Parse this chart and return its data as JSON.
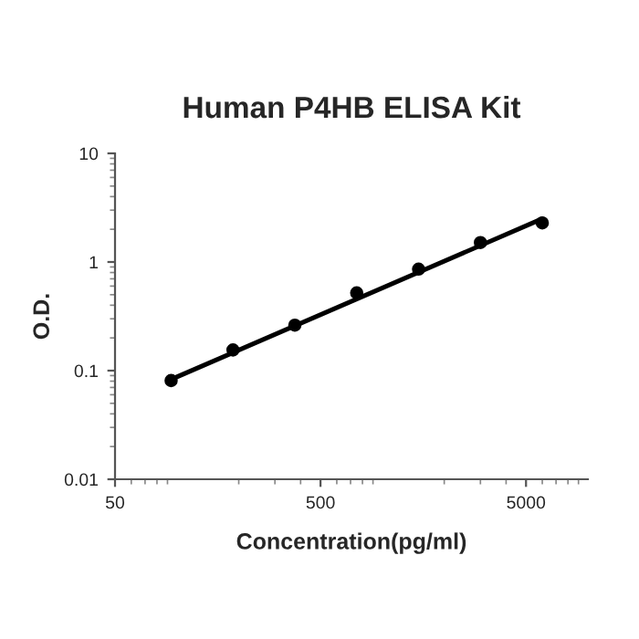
{
  "chart_data": {
    "type": "scatter",
    "title": "Human P4HB ELISA Kit",
    "xlabel": "Concentration(pg/ml)",
    "ylabel": "O.D.",
    "log": "xy",
    "xlim": [
      50,
      10000
    ],
    "xticks": [
      50,
      500,
      5000
    ],
    "ylim": [
      0.01,
      10
    ],
    "yticks": [
      0.01,
      0.1,
      1,
      10
    ],
    "grid": false,
    "legend": false,
    "series": [
      {
        "color": "#000000",
        "marker": "circle",
        "x": [
          93.75,
          187.5,
          375,
          750,
          1500,
          3000,
          6000
        ],
        "values": [
          0.081,
          0.155,
          0.262,
          0.52,
          0.86,
          1.51,
          2.29
        ]
      },
      {
        "type": "line",
        "color": "#000000",
        "marker": "none",
        "line_style": "solid",
        "x": [
          93.75,
          6000
        ],
        "values": [
          0.083,
          2.5
        ]
      }
    ]
  }
}
